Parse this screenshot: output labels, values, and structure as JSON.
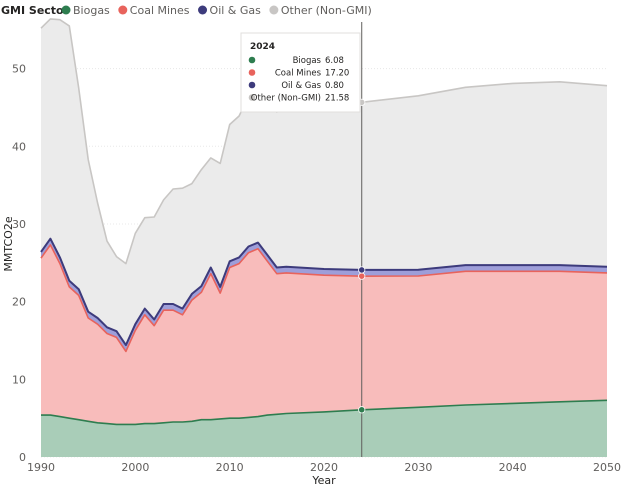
{
  "chart_data": {
    "type": "area",
    "stacked": true,
    "xlabel": "Year",
    "ylabel": "MMTCO2e",
    "xlim": [
      1990,
      2050
    ],
    "ylim": [
      0,
      56
    ],
    "x_ticks": [
      1990,
      2000,
      2010,
      2020,
      2030,
      2040,
      2050
    ],
    "y_ticks": [
      0,
      10,
      20,
      30,
      40,
      50
    ],
    "grid": "horizontal",
    "legend": {
      "title": "GMI Sector",
      "placement": "top-left",
      "entries": [
        "Biogas",
        "Coal Mines",
        "Oil & Gas",
        "Other (Non-GMI)"
      ]
    },
    "x": [
      1990,
      1991,
      1992,
      1993,
      1994,
      1995,
      1996,
      1997,
      1998,
      1999,
      2000,
      2001,
      2002,
      2003,
      2004,
      2005,
      2006,
      2007,
      2008,
      2009,
      2010,
      2011,
      2012,
      2013,
      2014,
      2015,
      2016,
      2020,
      2024,
      2030,
      2035,
      2040,
      2045,
      2050
    ],
    "series": [
      {
        "name": "Biogas",
        "color": "#2e7d4f",
        "fill": "#a9cdb8",
        "values": [
          5.4,
          5.4,
          5.2,
          5.0,
          4.8,
          4.6,
          4.4,
          4.3,
          4.2,
          4.2,
          4.2,
          4.3,
          4.3,
          4.4,
          4.5,
          4.5,
          4.6,
          4.8,
          4.8,
          4.9,
          5.0,
          5.0,
          5.1,
          5.2,
          5.4,
          5.5,
          5.6,
          5.8,
          6.08,
          6.4,
          6.7,
          6.9,
          7.1,
          7.3
        ]
      },
      {
        "name": "Coal Mines",
        "color": "#e8635c",
        "fill": "#f8bcbb",
        "values": [
          20.2,
          21.9,
          19.7,
          16.9,
          16.0,
          13.3,
          12.7,
          11.6,
          11.2,
          9.4,
          12.1,
          14.0,
          12.6,
          14.5,
          14.4,
          13.8,
          15.6,
          16.4,
          18.8,
          16.2,
          19.4,
          19.9,
          21.2,
          21.6,
          19.8,
          18.1,
          18.1,
          17.6,
          17.2,
          16.9,
          17.2,
          17.0,
          16.8,
          16.4
        ]
      },
      {
        "name": "Oil & Gas",
        "color": "#3d3b7c",
        "fill": "#9e9ed9",
        "values": [
          0.8,
          0.8,
          0.8,
          0.8,
          0.8,
          0.8,
          0.8,
          0.8,
          0.8,
          0.8,
          0.8,
          0.8,
          0.8,
          0.8,
          0.8,
          0.8,
          0.8,
          0.8,
          0.8,
          0.8,
          0.8,
          0.8,
          0.8,
          0.8,
          0.8,
          0.8,
          0.8,
          0.8,
          0.8,
          0.8,
          0.8,
          0.8,
          0.8,
          0.8
        ]
      },
      {
        "name": "Other (Non-GMI)",
        "color": "#c8c6c4",
        "fill": "#ebebeb",
        "values": [
          28.8,
          28.3,
          30.6,
          32.8,
          25.9,
          19.6,
          14.8,
          11.1,
          9.6,
          10.5,
          11.7,
          11.7,
          13.2,
          13.4,
          14.8,
          15.5,
          14.2,
          15.0,
          14.1,
          15.9,
          17.6,
          18.2,
          19.3,
          20.3,
          19.7,
          20.0,
          20.9,
          22.2,
          21.58,
          22.4,
          22.9,
          23.4,
          23.6,
          23.3
        ]
      }
    ],
    "tooltip": {
      "year": "2024",
      "rows": [
        {
          "label": "Biogas",
          "value": "6.08",
          "color": "#2e7d4f"
        },
        {
          "label": "Coal Mines",
          "value": "17.20",
          "color": "#e8635c"
        },
        {
          "label": "Oil & Gas",
          "value": "0.80",
          "color": "#3d3b7c"
        },
        {
          "label": "Other (Non-GMI)",
          "value": "21.58",
          "color": "#c8c6c4"
        }
      ]
    }
  }
}
